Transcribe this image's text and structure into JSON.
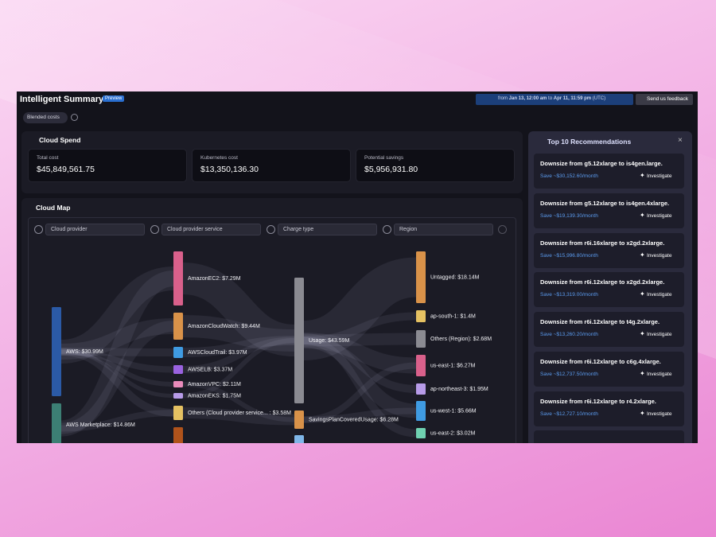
{
  "header": {
    "title": "Intelligent Summary",
    "badge": "Preview",
    "date_range": {
      "prefix": "from",
      "start": "Jan 13, 12:00 am",
      "joiner": "to",
      "end": "Apr 11, 11:59 pm",
      "timezone": "(UTC)"
    },
    "feedback": "Send us feedback",
    "cost_type": "Blended costs"
  },
  "cloud_spend": {
    "title": "Cloud Spend",
    "cards": [
      {
        "label": "Total cost",
        "value": "$45,849,561.75"
      },
      {
        "label": "Kubernetes cost",
        "value": "$13,350,136.30"
      },
      {
        "label": "Potential savings",
        "value": "$5,956,931.80"
      }
    ]
  },
  "cloud_map": {
    "title": "Cloud Map",
    "filters": [
      "Cloud provider",
      "Cloud provider service",
      "Charge type",
      "Region"
    ],
    "nodes": [
      {
        "label": "AWS: $30.99M"
      },
      {
        "label": "AWS Marketplace: $14.86M"
      },
      {
        "label": "AmazonEC2: $7.29M"
      },
      {
        "label": "AmazonCloudWatch: $9.44M"
      },
      {
        "label": "AWSCloudTrail: $3.97M"
      },
      {
        "label": "AWSELB: $3.37M"
      },
      {
        "label": "AmazonVPC: $2.11M"
      },
      {
        "label": "AmazonEKS: $1.75M"
      },
      {
        "label": "Others (Cloud provider service... : $3.58M"
      },
      {
        "label": "Usage: $43.59M"
      },
      {
        "label": "SavingsPlanCoveredUsage: $6.28M"
      },
      {
        "label": "Untagged: $18.14M"
      },
      {
        "label": "ap-south-1: $1.4M"
      },
      {
        "label": "Others (Region): $2.68M"
      },
      {
        "label": "us-east-1: $6.27M"
      },
      {
        "label": "ap-northeast-3: $1.95M"
      },
      {
        "label": "us-west-1: $5.66M"
      },
      {
        "label": "us-east-2: $3.02M"
      }
    ]
  },
  "recommendations": {
    "title": "Top 10 Recommendations",
    "items": [
      {
        "title": "Downsize from g5.12xlarge to is4gen.large.",
        "savings": "Save ~$30,152.60/month",
        "action": "Investigate"
      },
      {
        "title": "Downsize from g5.12xlarge to is4gen.4xlarge.",
        "savings": "Save ~$19,139.30/month",
        "action": "Investigate"
      },
      {
        "title": "Downsize from r6i.16xlarge to x2gd.2xlarge.",
        "savings": "Save ~$15,996.80/month",
        "action": "Investigate"
      },
      {
        "title": "Downsize from r6i.12xlarge to x2gd.2xlarge.",
        "savings": "Save ~$13,319.00/month",
        "action": "Investigate"
      },
      {
        "title": "Downsize from r6i.12xlarge to t4g.2xlarge.",
        "savings": "Save ~$13,260.20/month",
        "action": "Investigate"
      },
      {
        "title": "Downsize from r6i.12xlarge to c6g.4xlarge.",
        "savings": "Save ~$12,737.50/month",
        "action": "Investigate"
      },
      {
        "title": "Downsize from r6i.12xlarge to r4.2xlarge.",
        "savings": "Save ~$12,727.10/month",
        "action": "Investigate"
      }
    ]
  }
}
